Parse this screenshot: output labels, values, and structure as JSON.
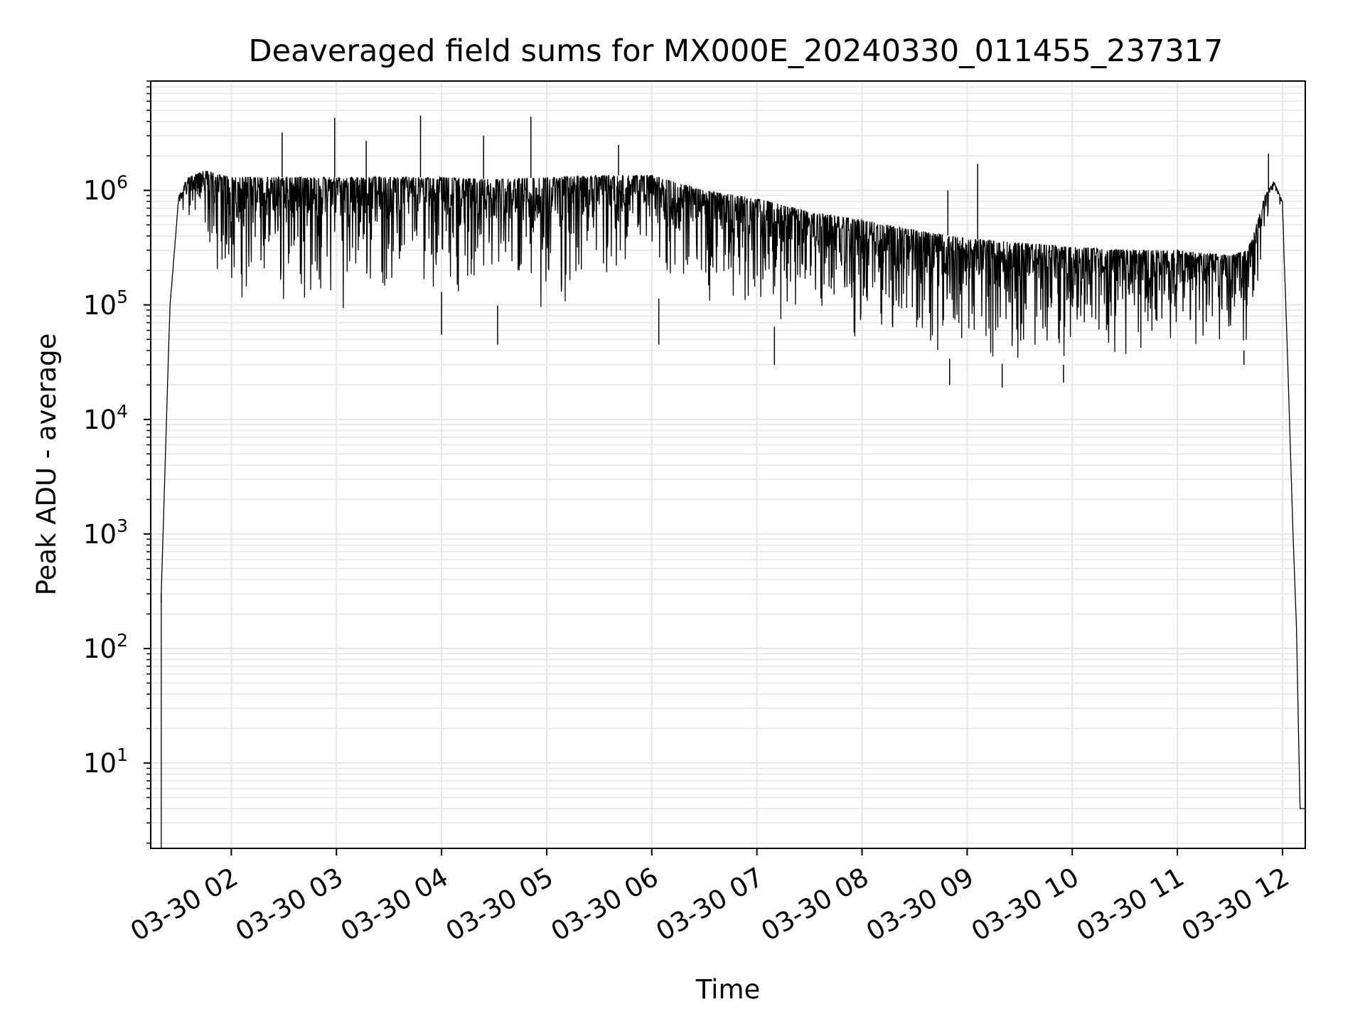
{
  "chart_data": {
    "type": "line",
    "title": "Deaveraged field sums for MX000E_20240330_011455_237317",
    "xlabel": "Time",
    "ylabel": "Peak ADU - average",
    "yscale": "log",
    "ylim": [
      1.8,
      9000000
    ],
    "xlim": [
      "2024-03-30 01:14",
      "2024-03-30 12:13"
    ],
    "grid": true,
    "line_color": "#000000",
    "grid_color": "#e6e6e6",
    "x_ticks": [
      {
        "value": "2024-03-30 02:00",
        "label": "03-30 02"
      },
      {
        "value": "2024-03-30 03:00",
        "label": "03-30 03"
      },
      {
        "value": "2024-03-30 04:00",
        "label": "03-30 04"
      },
      {
        "value": "2024-03-30 05:00",
        "label": "03-30 05"
      },
      {
        "value": "2024-03-30 06:00",
        "label": "03-30 06"
      },
      {
        "value": "2024-03-30 07:00",
        "label": "03-30 07"
      },
      {
        "value": "2024-03-30 08:00",
        "label": "03-30 08"
      },
      {
        "value": "2024-03-30 09:00",
        "label": "03-30 09"
      },
      {
        "value": "2024-03-30 10:00",
        "label": "03-30 10"
      },
      {
        "value": "2024-03-30 11:00",
        "label": "03-30 11"
      },
      {
        "value": "2024-03-30 12:00",
        "label": "03-30 12"
      }
    ],
    "y_ticks": [
      {
        "value": 10,
        "base": "10",
        "exp": "1"
      },
      {
        "value": 100,
        "base": "10",
        "exp": "2"
      },
      {
        "value": 1000,
        "base": "10",
        "exp": "3"
      },
      {
        "value": 10000,
        "base": "10",
        "exp": "4"
      },
      {
        "value": 100000,
        "base": "10",
        "exp": "5"
      },
      {
        "value": 1000000,
        "base": "10",
        "exp": "6"
      }
    ],
    "series": [
      {
        "envelope": {
          "x": [
            "2024-03-30 01:20",
            "2024-03-30 01:25",
            "2024-03-30 01:30",
            "2024-03-30 01:35",
            "2024-03-30 01:45",
            "2024-03-30 02:00",
            "2024-03-30 02:30",
            "2024-03-30 03:00",
            "2024-03-30 03:30",
            "2024-03-30 04:00",
            "2024-03-30 04:30",
            "2024-03-30 05:00",
            "2024-03-30 05:30",
            "2024-03-30 06:00",
            "2024-03-30 06:30",
            "2024-03-30 07:00",
            "2024-03-30 07:30",
            "2024-03-30 08:00",
            "2024-03-30 08:30",
            "2024-03-30 09:00",
            "2024-03-30 09:30",
            "2024-03-30 10:00",
            "2024-03-30 10:30",
            "2024-03-30 11:00",
            "2024-03-30 11:30",
            "2024-03-30 11:40",
            "2024-03-30 11:45",
            "2024-03-30 11:50",
            "2024-03-30 11:55",
            "2024-03-30 12:00",
            "2024-03-30 12:03",
            "2024-03-30 12:06",
            "2024-03-30 12:08",
            "2024-03-30 12:10",
            "2024-03-30 12:13"
          ],
          "high": [
            300,
            100000,
            900000,
            1300000,
            1500000,
            1300000,
            1300000,
            1300000,
            1300000,
            1300000,
            1250000,
            1300000,
            1350000,
            1350000,
            1000000,
            850000,
            650000,
            550000,
            450000,
            380000,
            350000,
            320000,
            300000,
            300000,
            270000,
            300000,
            500000,
            900000,
            1200000,
            800000,
            30000,
            1000,
            150,
            4,
            4
          ],
          "low": [
            300,
            100000,
            700000,
            600000,
            300000,
            100000,
            70000,
            80000,
            110000,
            130000,
            100000,
            80000,
            80000,
            120000,
            80000,
            70000,
            55000,
            45000,
            38000,
            32000,
            30000,
            30000,
            35000,
            40000,
            40000,
            40000,
            80000,
            400000,
            900000,
            600000,
            30000,
            1000,
            150,
            4,
            4
          ]
        },
        "spikes": [
          {
            "x": "2024-03-30 02:29",
            "y": 3200000
          },
          {
            "x": "2024-03-30 02:59",
            "y": 4300000
          },
          {
            "x": "2024-03-30 03:17",
            "y": 2700000
          },
          {
            "x": "2024-03-30 03:48",
            "y": 4500000
          },
          {
            "x": "2024-03-30 04:24",
            "y": 3000000
          },
          {
            "x": "2024-03-30 04:51",
            "y": 4400000
          },
          {
            "x": "2024-03-30 05:41",
            "y": 2500000
          },
          {
            "x": "2024-03-30 08:49",
            "y": 1000000
          },
          {
            "x": "2024-03-30 09:06",
            "y": 1700000
          },
          {
            "x": "2024-03-30 11:52",
            "y": 2100000
          }
        ],
        "dips": [
          {
            "x": "2024-03-30 01:20",
            "y": 250
          },
          {
            "x": "2024-03-30 04:00",
            "y": 55000
          },
          {
            "x": "2024-03-30 04:32",
            "y": 45000
          },
          {
            "x": "2024-03-30 06:04",
            "y": 45000
          },
          {
            "x": "2024-03-30 07:10",
            "y": 30000
          },
          {
            "x": "2024-03-30 08:50",
            "y": 20000
          },
          {
            "x": "2024-03-30 09:20",
            "y": 19000
          },
          {
            "x": "2024-03-30 09:55",
            "y": 21000
          },
          {
            "x": "2024-03-30 11:38",
            "y": 30000
          }
        ]
      }
    ]
  }
}
